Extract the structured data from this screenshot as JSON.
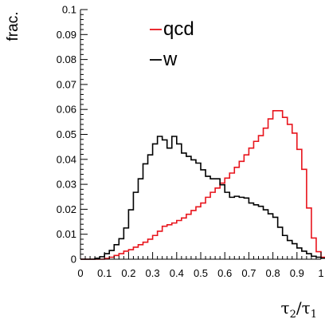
{
  "chart_data": {
    "type": "line",
    "style": "step-histogram",
    "title": "",
    "xlabel": "τ2/τ1",
    "xlabel_parts": {
      "num": "τ",
      "num_sub": "2",
      "slash": "/",
      "den": "τ",
      "den_sub": "1"
    },
    "ylabel": "frac.",
    "xlim": [
      0,
      1
    ],
    "ylim": [
      0,
      0.1
    ],
    "xticks": [
      "0",
      "0.1",
      "0.2",
      "0.3",
      "0.4",
      "0.5",
      "0.6",
      "0.7",
      "0.8",
      "0.9",
      "1"
    ],
    "yticks": [
      "0",
      "0.01",
      "0.02",
      "0.03",
      "0.04",
      "0.05",
      "0.06",
      "0.07",
      "0.08",
      "0.09",
      "0.1"
    ],
    "bin_width": 0.02,
    "grid": false,
    "legend_position": "top-center",
    "series": [
      {
        "name": "qcd",
        "color": "#e8141c",
        "values": [
          0,
          0,
          0,
          0,
          0,
          0.0003,
          0.0008,
          0.0015,
          0.0022,
          0.0032,
          0.0038,
          0.0048,
          0.0058,
          0.0068,
          0.008,
          0.0095,
          0.0112,
          0.0132,
          0.0138,
          0.0145,
          0.0155,
          0.0165,
          0.018,
          0.0195,
          0.021,
          0.0225,
          0.0248,
          0.0268,
          0.0285,
          0.0305,
          0.0325,
          0.0345,
          0.0368,
          0.0392,
          0.0418,
          0.0445,
          0.0472,
          0.0495,
          0.0525,
          0.0562,
          0.0595,
          0.0595,
          0.0568,
          0.054,
          0.0505,
          0.044,
          0.036,
          0.0205,
          0.0085,
          0.003,
          0.0008,
          0,
          0,
          0,
          0
        ]
      },
      {
        "name": "w",
        "color": "#000000",
        "values": [
          0,
          0,
          0,
          0.0004,
          0.001,
          0.0022,
          0.0035,
          0.0058,
          0.0082,
          0.0125,
          0.0198,
          0.0268,
          0.0322,
          0.0382,
          0.0418,
          0.0462,
          0.0492,
          0.0478,
          0.0445,
          0.0492,
          0.0462,
          0.0425,
          0.0412,
          0.0398,
          0.0385,
          0.0358,
          0.0332,
          0.0322,
          0.0322,
          0.0298,
          0.0268,
          0.0248,
          0.0252,
          0.0248,
          0.0245,
          0.0225,
          0.0218,
          0.0212,
          0.0198,
          0.0182,
          0.0168,
          0.0128,
          0.0095,
          0.0075,
          0.0062,
          0.0045,
          0.0032,
          0.0022,
          0.0012,
          0.0008,
          0.0004,
          0,
          0,
          0,
          0
        ]
      }
    ]
  }
}
